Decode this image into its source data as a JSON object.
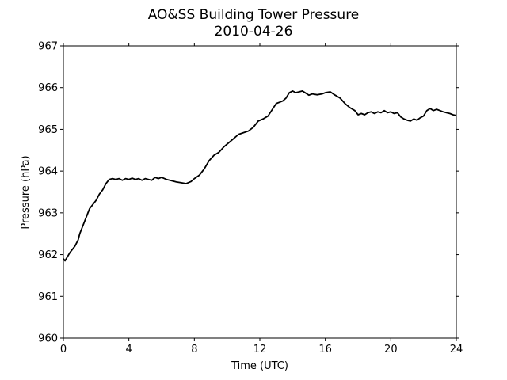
{
  "chart_data": {
    "type": "line",
    "title": "AO&SS Building Tower Pressure",
    "subtitle": "2010-04-26",
    "xlabel": "Time (UTC)",
    "ylabel": "Pressure (hPa)",
    "xlim": [
      0,
      24
    ],
    "ylim": [
      960,
      967
    ],
    "xticks": [
      0,
      4,
      8,
      12,
      16,
      20,
      24
    ],
    "xtick_labels": [
      "0",
      "4",
      "8",
      "12",
      "16",
      "20",
      "24"
    ],
    "yticks": [
      960,
      961,
      962,
      963,
      964,
      965,
      966,
      967
    ],
    "ytick_labels": [
      "960",
      "961",
      "962",
      "963",
      "964",
      "965",
      "966",
      "967"
    ],
    "grid": false,
    "legend": "none",
    "line_color": "#000000",
    "series": [
      {
        "x": [
          0.0,
          0.1,
          0.25,
          0.4,
          0.5,
          0.7,
          0.9,
          1.0,
          1.2,
          1.4,
          1.6,
          1.8,
          2.0,
          2.2,
          2.4,
          2.6,
          2.8,
          3.0,
          3.2,
          3.4,
          3.6,
          3.8,
          4.0,
          4.2,
          4.4,
          4.6,
          4.8,
          5.0,
          5.2,
          5.4,
          5.6,
          5.8,
          6.0,
          6.3,
          6.6,
          6.9,
          7.2,
          7.5,
          7.8,
          8.0,
          8.3,
          8.6,
          8.9,
          9.2,
          9.5,
          9.8,
          10.1,
          10.4,
          10.7,
          11.0,
          11.3,
          11.6,
          11.9,
          12.2,
          12.5,
          12.8,
          13.0,
          13.2,
          13.4,
          13.6,
          13.8,
          14.0,
          14.2,
          14.4,
          14.6,
          14.8,
          15.0,
          15.2,
          15.5,
          15.8,
          16.0,
          16.3,
          16.6,
          16.9,
          17.2,
          17.5,
          17.8,
          18.0,
          18.2,
          18.4,
          18.6,
          18.8,
          19.0,
          19.2,
          19.4,
          19.6,
          19.8,
          20.0,
          20.2,
          20.4,
          20.6,
          20.8,
          21.0,
          21.2,
          21.4,
          21.6,
          21.8,
          22.0,
          22.2,
          22.4,
          22.6,
          22.8,
          23.0,
          23.2,
          23.4,
          23.6,
          23.8,
          24.0
        ],
        "y": [
          961.9,
          961.85,
          961.95,
          962.05,
          962.1,
          962.2,
          962.35,
          962.5,
          962.7,
          962.9,
          963.1,
          963.2,
          963.3,
          963.45,
          963.55,
          963.7,
          963.8,
          963.82,
          963.8,
          963.82,
          963.78,
          963.82,
          963.8,
          963.83,
          963.8,
          963.82,
          963.78,
          963.82,
          963.8,
          963.78,
          963.85,
          963.82,
          963.85,
          963.8,
          963.77,
          963.74,
          963.72,
          963.7,
          963.75,
          963.82,
          963.9,
          964.05,
          964.25,
          964.38,
          964.45,
          964.58,
          964.68,
          964.78,
          964.88,
          964.92,
          964.96,
          965.05,
          965.2,
          965.25,
          965.32,
          965.5,
          965.62,
          965.65,
          965.68,
          965.75,
          965.88,
          965.92,
          965.88,
          965.9,
          965.92,
          965.87,
          965.82,
          965.85,
          965.83,
          965.85,
          965.88,
          965.9,
          965.82,
          965.75,
          965.62,
          965.52,
          965.45,
          965.35,
          965.38,
          965.35,
          965.4,
          965.42,
          965.38,
          965.42,
          965.4,
          965.45,
          965.4,
          965.42,
          965.38,
          965.4,
          965.3,
          965.25,
          965.22,
          965.2,
          965.25,
          965.22,
          965.28,
          965.32,
          965.45,
          965.5,
          965.45,
          965.48,
          965.45,
          965.42,
          965.4,
          965.38,
          965.35,
          965.33
        ]
      }
    ]
  }
}
